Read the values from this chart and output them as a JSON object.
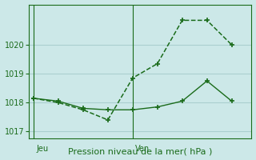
{
  "title": "Pression niveau de la mer( hPa )",
  "bg_color": "#cce8e8",
  "grid_color": "#aacfcf",
  "line_color": "#1a6b1a",
  "ylim": [
    1016.75,
    1021.4
  ],
  "yticks": [
    1017,
    1018,
    1019,
    1020
  ],
  "day_positions": [
    0,
    4
  ],
  "day_labels": [
    "Jeu",
    "Ven"
  ],
  "line1_x": [
    0,
    1,
    2,
    3,
    4,
    5,
    6,
    7,
    8
  ],
  "line1_y": [
    1018.15,
    1018.0,
    1017.75,
    1017.4,
    1018.85,
    1019.35,
    1020.85,
    1020.85,
    1020.0
  ],
  "line2_x": [
    0,
    1,
    2,
    3,
    4,
    5,
    6,
    7,
    8
  ],
  "line2_y": [
    1018.15,
    1018.05,
    1017.8,
    1017.75,
    1017.75,
    1017.85,
    1018.05,
    1018.75,
    1018.05
  ],
  "xlim": [
    -0.2,
    8.8
  ]
}
